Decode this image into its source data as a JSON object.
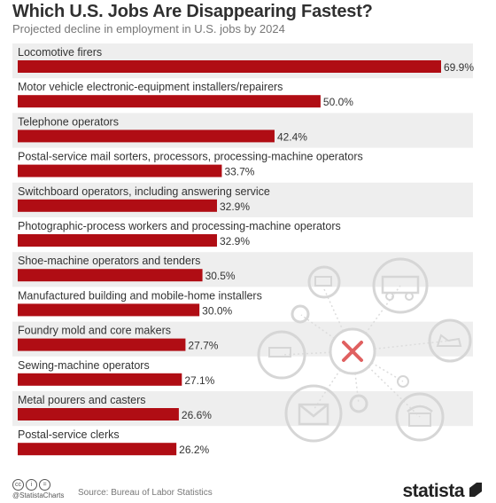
{
  "chart_data": {
    "type": "bar",
    "orientation": "horizontal",
    "title": "Which U.S. Jobs Are Disappearing Fastest?",
    "subtitle": "Projected decline in employment in U.S. jobs by 2024",
    "categories": [
      "Locomotive firers",
      "Motor vehicle electronic-equipment installers/repairers",
      "Telephone operators",
      "Postal-service mail sorters, processors, processing-machine operators",
      "Switchboard operators, including answering service",
      "Photographic-process workers and processing-machine operators",
      "Shoe-machine operators and tenders",
      "Manufactured building and mobile-home installers",
      "Foundry mold and core makers",
      "Sewing-machine operators",
      "Metal pourers and casters",
      "Postal-service clerks"
    ],
    "values": [
      69.9,
      50.0,
      42.4,
      33.7,
      32.9,
      32.9,
      30.5,
      30.0,
      27.7,
      27.1,
      26.6,
      26.2
    ],
    "value_labels": [
      "69.9%",
      "50.0%",
      "42.4%",
      "33.7%",
      "32.9%",
      "32.9%",
      "30.5%",
      "30.0%",
      "27.7%",
      "27.1%",
      "26.6%",
      "26.2%"
    ],
    "xlim": [
      0,
      69.9
    ],
    "grid": false,
    "legend": "none",
    "colors": {
      "bar": "#b00d14",
      "row_band": "#eeeeee",
      "label": "#333333",
      "icon": "#d5d5d5",
      "icon_accent": "#e06060"
    }
  },
  "footer": {
    "handle": "@StatistaCharts",
    "source": "Source: Bureau of Labor Statistics",
    "logo": "statista",
    "cc_icons": [
      "cc",
      "i",
      "="
    ]
  }
}
